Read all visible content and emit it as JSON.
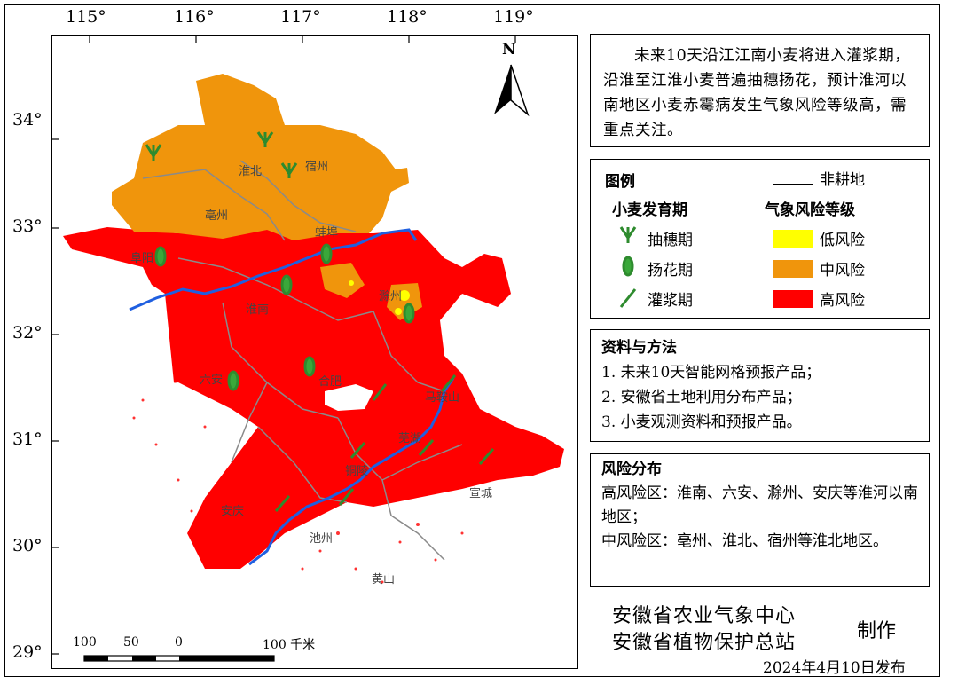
{
  "map": {
    "lon_ticks": [
      "115°",
      "116°",
      "117°",
      "118°",
      "119°"
    ],
    "lat_ticks": [
      "34°",
      "33°",
      "32°",
      "31°",
      "30°",
      "29°"
    ],
    "north_label": "N",
    "scale_labels": [
      "100",
      "50",
      "0",
      "100 千米"
    ],
    "place_labels": [
      "宿州",
      "淮北",
      "亳州",
      "蚌埠",
      "阜阳",
      "淮南",
      "滁州",
      "六安",
      "合肥",
      "马鞍山",
      "芜湖",
      "铜陵",
      "宣城",
      "安庆",
      "池州",
      "黄山"
    ],
    "colors": {
      "low": "#ffff00",
      "medium": "#f0950c",
      "high": "#ff0000",
      "river": "#1f5fe0",
      "boundary": "#8a8a8a"
    }
  },
  "description": "未来10天沿江江南小麦将进入灌浆期，沿淮至江淮小麦普遍抽穗扬花，预计淮河以南地区小麦赤霉病发生气象风险等级高，需重点关注。",
  "legend": {
    "title": "图例",
    "nonfarm": "非耕地",
    "stage_title": "小麦发育期",
    "risk_title": "气象风险等级",
    "stages": [
      "抽穗期",
      "扬花期",
      "灌浆期"
    ],
    "risks": [
      "低风险",
      "中风险",
      "高风险"
    ]
  },
  "methods": {
    "title": "资料与方法",
    "items": [
      "1. 未来10天智能网格预报产品；",
      "2. 安徽省土地利用分布产品；",
      "3. 小麦观测资料和预报产品。"
    ]
  },
  "risk": {
    "title": "风险分布",
    "high": "高风险区：淮南、六安、滁州、安庆等淮河以南地区；",
    "medium": "中风险区：亳州、淮北、宿州等淮北地区。"
  },
  "footer": {
    "org1": "安徽省农业气象中心",
    "org2": "安徽省植物保护总站",
    "made": "制作",
    "date": "2024年4月10日发布"
  }
}
